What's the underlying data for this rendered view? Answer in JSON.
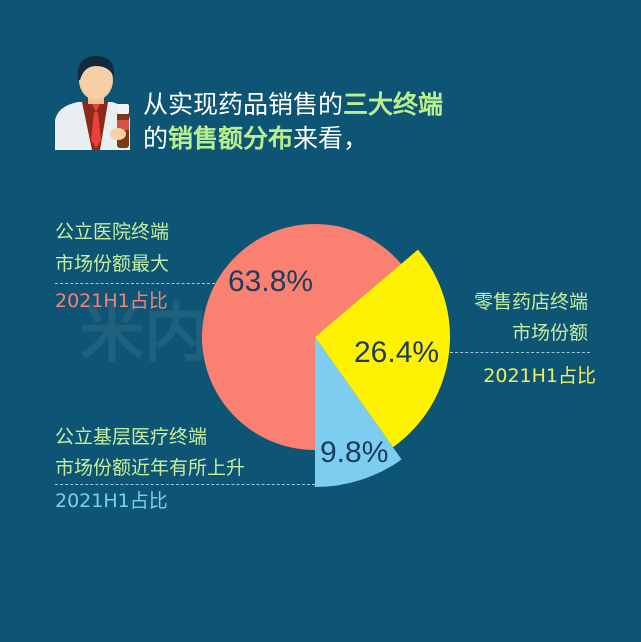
{
  "header": {
    "line1_plain": "从实现药品销售的",
    "line1_highlight": "三大终端",
    "line2_plain_a": "的",
    "line2_highlight": "销售额分布",
    "line2_plain_b": "来看，"
  },
  "watermark": "米内MENET",
  "icon": "doctor-holding-medicine-bottle-icon",
  "colors": {
    "background": "#0e5474",
    "hospital": "#fa8072",
    "retail": "#fff200",
    "primary_care": "#7dcdf0",
    "highlight": "#b9ef8c",
    "label": "#c6ee9e",
    "value_text": "#1d3d5c"
  },
  "chart_data": {
    "type": "pie",
    "title": "",
    "slices": [
      {
        "label_line1": "公立医院终端",
        "label_line2": "市场份额最大",
        "period_label": "2021H1占比",
        "value": 63.8,
        "display": "63.8%",
        "color": "#fa8072"
      },
      {
        "label_line1": "零售药店终端",
        "label_line2": "市场份额",
        "period_label": "2021H1占比",
        "value": 26.4,
        "display": "26.4%",
        "color": "#fff200"
      },
      {
        "label_line1": "公立基层医疗终端",
        "label_line2": "市场份额近年有所上升",
        "period_label": "2021H1占比",
        "value": 9.8,
        "display": "9.8%",
        "color": "#7dcdf0"
      }
    ]
  }
}
